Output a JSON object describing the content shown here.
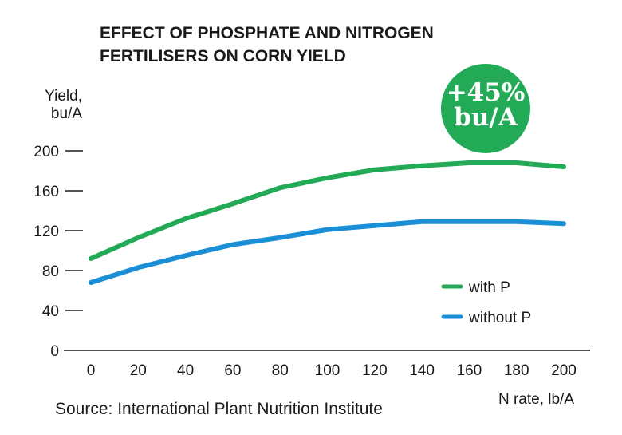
{
  "chart_data": {
    "type": "line",
    "title_lines": [
      "EFFECT OF PHOSPHATE AND NITROGEN",
      "FERTILISERS ON CORN YIELD"
    ],
    "ylabel_lines": [
      "Yield,",
      "bu/A"
    ],
    "xlabel": "N rate, lb/A",
    "x": [
      0,
      20,
      40,
      60,
      80,
      100,
      120,
      140,
      160,
      180,
      200
    ],
    "ylim": [
      0,
      200
    ],
    "yticks": [
      0,
      40,
      80,
      120,
      160,
      200
    ],
    "series": [
      {
        "name": "with P",
        "color": "#23aa57",
        "values": [
          92,
          113,
          132,
          147,
          163,
          173,
          181,
          185,
          188,
          188,
          184
        ]
      },
      {
        "name": "without P",
        "color": "#1a8fd6",
        "values": [
          68,
          83,
          95,
          106,
          113,
          121,
          125,
          129,
          129,
          129,
          127
        ]
      }
    ],
    "badge": {
      "lines": [
        "+45%",
        "bu/A"
      ],
      "color": "#23aa57"
    },
    "legend_position": "bottom-right",
    "grid": false
  },
  "source": "Source: International Plant Nutrition Institute"
}
